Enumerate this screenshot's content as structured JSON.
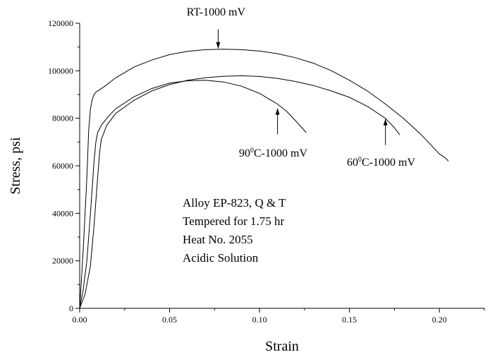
{
  "chart_data": {
    "type": "line",
    "xlabel": "Strain",
    "ylabel": "Stress, psi",
    "xlim": [
      0.0,
      0.225
    ],
    "ylim": [
      0,
      120000
    ],
    "x_ticks": [
      0.0,
      0.05,
      0.1,
      0.15,
      0.2
    ],
    "x_tick_labels": [
      "0.00",
      "0.05",
      "0.10",
      "0.15",
      "0.20"
    ],
    "y_ticks": [
      0,
      20000,
      40000,
      60000,
      80000,
      100000,
      120000
    ],
    "y_tick_labels": [
      "0",
      "20000",
      "40000",
      "60000",
      "80000",
      "100000",
      "120000"
    ],
    "grid": false,
    "series": [
      {
        "name": "RT-1000 mV",
        "color": "#000000",
        "x": [
          0.0,
          0.002,
          0.004,
          0.005,
          0.006,
          0.007,
          0.008,
          0.009,
          0.011,
          0.014,
          0.02,
          0.03,
          0.04,
          0.05,
          0.06,
          0.07,
          0.08,
          0.09,
          0.1,
          0.11,
          0.12,
          0.13,
          0.14,
          0.15,
          0.16,
          0.17,
          0.18,
          0.19,
          0.195,
          0.2,
          0.203,
          0.205
        ],
        "y": [
          0,
          25000,
          55000,
          75000,
          84000,
          88000,
          90000,
          91000,
          92000,
          93500,
          97000,
          101500,
          104500,
          106800,
          108200,
          108900,
          109100,
          108900,
          108300,
          107200,
          105500,
          103200,
          100000,
          96000,
          91500,
          86000,
          80000,
          73000,
          69000,
          65000,
          63500,
          62000
        ]
      },
      {
        "name": "90⁰C-1000 mV",
        "color": "#000000",
        "x": [
          0.0,
          0.002,
          0.004,
          0.006,
          0.008,
          0.009,
          0.01,
          0.012,
          0.015,
          0.02,
          0.03,
          0.04,
          0.05,
          0.06,
          0.07,
          0.08,
          0.09,
          0.1,
          0.11,
          0.115,
          0.12,
          0.123,
          0.126
        ],
        "y": [
          0,
          8000,
          20000,
          40000,
          62000,
          70000,
          74000,
          77000,
          80000,
          84000,
          89000,
          92500,
          94800,
          95800,
          96000,
          95300,
          93500,
          90500,
          86000,
          83000,
          79000,
          76500,
          74000
        ]
      },
      {
        "name": "60⁰C-1000 mV",
        "color": "#000000",
        "x": [
          0.0,
          0.003,
          0.006,
          0.008,
          0.01,
          0.011,
          0.012,
          0.015,
          0.02,
          0.03,
          0.04,
          0.05,
          0.06,
          0.07,
          0.08,
          0.09,
          0.1,
          0.11,
          0.12,
          0.13,
          0.14,
          0.15,
          0.16,
          0.17,
          0.175,
          0.178
        ],
        "y": [
          0,
          6000,
          18000,
          35000,
          55000,
          65000,
          71000,
          77000,
          82000,
          87500,
          91500,
          94200,
          96000,
          97100,
          97700,
          97900,
          97600,
          96800,
          95500,
          93800,
          91500,
          88800,
          85000,
          80000,
          76000,
          73000
        ]
      }
    ],
    "annotations": {
      "rt": {
        "text": "RT-1000 mV",
        "x": 0.077,
        "y": 109100
      },
      "ninety": {
        "base": "90",
        "sup": "0",
        "rest": "C-1000 mV",
        "x": 0.11,
        "y": 84500
      },
      "sixty": {
        "base": "60",
        "sup": "0",
        "rest": "C-1000 mV",
        "x": 0.17,
        "y": 80000
      }
    },
    "info_lines": [
      "Alloy EP-823, Q & T",
      "Tempered for 1.75 hr",
      "Heat No. 2055",
      "Acidic Solution"
    ]
  }
}
